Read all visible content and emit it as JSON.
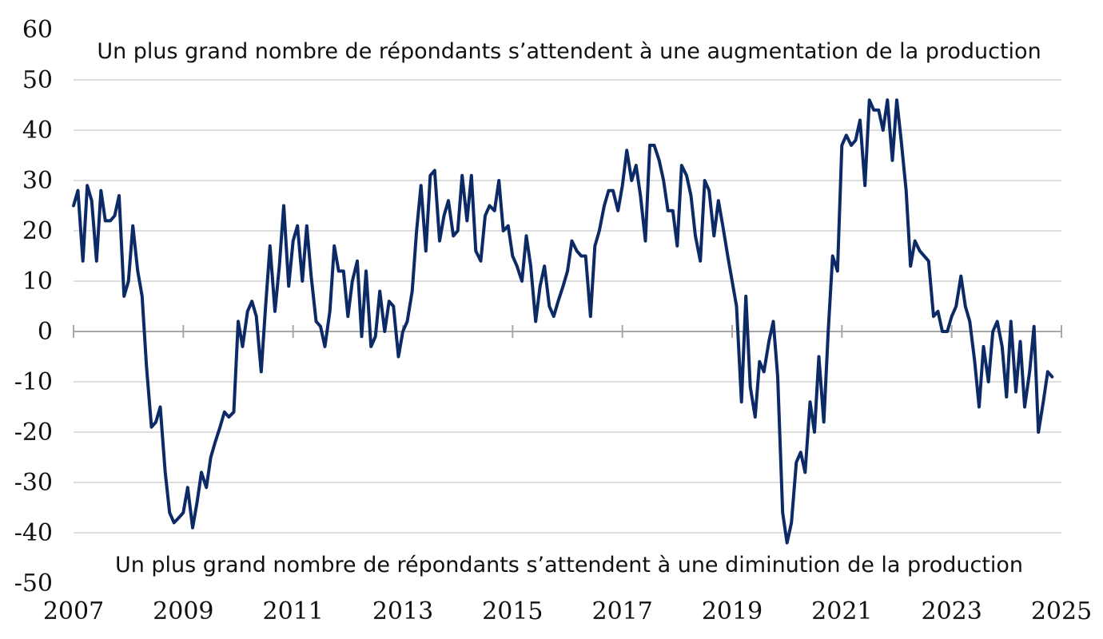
{
  "chart_data": {
    "type": "line",
    "title": "",
    "xlabel": "",
    "ylabel": "",
    "ylim": [
      -50,
      60
    ],
    "xlim": [
      2007,
      2025
    ],
    "yticks": [
      60,
      50,
      40,
      30,
      20,
      10,
      0,
      -10,
      -20,
      -30,
      -40,
      -50
    ],
    "xticks": [
      "2007",
      "2009",
      "2011",
      "2013",
      "2015",
      "2017",
      "2019",
      "2021",
      "2023",
      "2025"
    ],
    "grid": true,
    "line_color": "#0c2a66",
    "annotations": {
      "top": "Un plus grand nombre de répondants s’attendent à une augmentation de la production",
      "bottom": "Un plus grand nombre de répondants s’attendent à une diminution de la production"
    },
    "series": [
      {
        "points": [
          [
            2007.0,
            25
          ],
          [
            2007.08,
            28
          ],
          [
            2007.17,
            14
          ],
          [
            2007.25,
            29
          ],
          [
            2007.33,
            26
          ],
          [
            2007.42,
            14
          ],
          [
            2007.5,
            28
          ],
          [
            2007.58,
            22
          ],
          [
            2007.67,
            22
          ],
          [
            2007.75,
            23
          ],
          [
            2007.83,
            27
          ],
          [
            2007.92,
            7
          ],
          [
            2008.0,
            10
          ],
          [
            2008.08,
            21
          ],
          [
            2008.17,
            12
          ],
          [
            2008.25,
            7
          ],
          [
            2008.33,
            -7
          ],
          [
            2008.42,
            -19
          ],
          [
            2008.5,
            -18
          ],
          [
            2008.58,
            -15
          ],
          [
            2008.67,
            -28
          ],
          [
            2008.75,
            -36
          ],
          [
            2008.83,
            -38
          ],
          [
            2008.92,
            -37
          ],
          [
            2009.0,
            -36
          ],
          [
            2009.08,
            -31
          ],
          [
            2009.17,
            -39
          ],
          [
            2009.25,
            -34
          ],
          [
            2009.33,
            -28
          ],
          [
            2009.42,
            -31
          ],
          [
            2009.5,
            -25
          ],
          [
            2009.58,
            -22
          ],
          [
            2009.67,
            -19
          ],
          [
            2009.75,
            -16
          ],
          [
            2009.83,
            -17
          ],
          [
            2009.92,
            -16
          ],
          [
            2010.0,
            2
          ],
          [
            2010.08,
            -3
          ],
          [
            2010.17,
            4
          ],
          [
            2010.25,
            6
          ],
          [
            2010.33,
            3
          ],
          [
            2010.42,
            -8
          ],
          [
            2010.5,
            5
          ],
          [
            2010.58,
            17
          ],
          [
            2010.67,
            4
          ],
          [
            2010.75,
            13
          ],
          [
            2010.83,
            25
          ],
          [
            2010.92,
            9
          ],
          [
            2011.0,
            18
          ],
          [
            2011.08,
            21
          ],
          [
            2011.17,
            10
          ],
          [
            2011.25,
            21
          ],
          [
            2011.33,
            11
          ],
          [
            2011.42,
            2
          ],
          [
            2011.5,
            1
          ],
          [
            2011.58,
            -3
          ],
          [
            2011.67,
            4
          ],
          [
            2011.75,
            17
          ],
          [
            2011.83,
            12
          ],
          [
            2011.92,
            12
          ],
          [
            2012.0,
            3
          ],
          [
            2012.08,
            10
          ],
          [
            2012.17,
            14
          ],
          [
            2012.25,
            -1
          ],
          [
            2012.33,
            12
          ],
          [
            2012.42,
            -3
          ],
          [
            2012.5,
            -1
          ],
          [
            2012.58,
            8
          ],
          [
            2012.67,
            0
          ],
          [
            2012.75,
            6
          ],
          [
            2012.83,
            5
          ],
          [
            2012.92,
            -5
          ],
          [
            2013.0,
            0
          ],
          [
            2013.08,
            2
          ],
          [
            2013.17,
            8
          ],
          [
            2013.25,
            20
          ],
          [
            2013.33,
            29
          ],
          [
            2013.42,
            16
          ],
          [
            2013.5,
            31
          ],
          [
            2013.58,
            32
          ],
          [
            2013.67,
            18
          ],
          [
            2013.75,
            23
          ],
          [
            2013.83,
            26
          ],
          [
            2013.92,
            19
          ],
          [
            2014.0,
            20
          ],
          [
            2014.08,
            31
          ],
          [
            2014.17,
            22
          ],
          [
            2014.25,
            31
          ],
          [
            2014.33,
            16
          ],
          [
            2014.42,
            14
          ],
          [
            2014.5,
            23
          ],
          [
            2014.58,
            25
          ],
          [
            2014.67,
            24
          ],
          [
            2014.75,
            30
          ],
          [
            2014.83,
            20
          ],
          [
            2014.92,
            21
          ],
          [
            2015.0,
            15
          ],
          [
            2015.08,
            13
          ],
          [
            2015.17,
            10
          ],
          [
            2015.25,
            19
          ],
          [
            2015.33,
            13
          ],
          [
            2015.42,
            2
          ],
          [
            2015.5,
            9
          ],
          [
            2015.58,
            13
          ],
          [
            2015.67,
            5
          ],
          [
            2015.75,
            3
          ],
          [
            2015.83,
            6
          ],
          [
            2015.92,
            9
          ],
          [
            2016.0,
            12
          ],
          [
            2016.08,
            18
          ],
          [
            2016.17,
            16
          ],
          [
            2016.25,
            15
          ],
          [
            2016.33,
            15
          ],
          [
            2016.42,
            3
          ],
          [
            2016.5,
            17
          ],
          [
            2016.58,
            20
          ],
          [
            2016.67,
            25
          ],
          [
            2016.75,
            28
          ],
          [
            2016.83,
            28
          ],
          [
            2016.92,
            24
          ],
          [
            2017.0,
            29
          ],
          [
            2017.08,
            36
          ],
          [
            2017.17,
            30
          ],
          [
            2017.25,
            33
          ],
          [
            2017.33,
            27
          ],
          [
            2017.42,
            18
          ],
          [
            2017.5,
            37
          ],
          [
            2017.58,
            37
          ],
          [
            2017.67,
            34
          ],
          [
            2017.75,
            30
          ],
          [
            2017.83,
            24
          ],
          [
            2017.92,
            24
          ],
          [
            2018.0,
            17
          ],
          [
            2018.08,
            33
          ],
          [
            2018.17,
            31
          ],
          [
            2018.25,
            27
          ],
          [
            2018.33,
            19
          ],
          [
            2018.42,
            14
          ],
          [
            2018.5,
            30
          ],
          [
            2018.58,
            28
          ],
          [
            2018.67,
            19
          ],
          [
            2018.75,
            26
          ],
          [
            2018.83,
            21
          ],
          [
            2018.92,
            15
          ],
          [
            2019.0,
            10
          ],
          [
            2019.08,
            5
          ],
          [
            2019.17,
            -14
          ],
          [
            2019.25,
            7
          ],
          [
            2019.33,
            -11
          ],
          [
            2019.42,
            -17
          ],
          [
            2019.5,
            -6
          ],
          [
            2019.58,
            -8
          ],
          [
            2019.67,
            -2
          ],
          [
            2019.75,
            2
          ],
          [
            2019.83,
            -9
          ],
          [
            2019.92,
            -36
          ],
          [
            2020.0,
            -42
          ],
          [
            2020.08,
            -38
          ],
          [
            2020.17,
            -26
          ],
          [
            2020.25,
            -24
          ],
          [
            2020.33,
            -28
          ],
          [
            2020.42,
            -14
          ],
          [
            2020.5,
            -20
          ],
          [
            2020.58,
            -5
          ],
          [
            2020.67,
            -18
          ],
          [
            2020.75,
            0
          ],
          [
            2020.83,
            15
          ],
          [
            2020.92,
            12
          ],
          [
            2021.0,
            37
          ],
          [
            2021.08,
            39
          ],
          [
            2021.17,
            37
          ],
          [
            2021.25,
            38
          ],
          [
            2021.33,
            42
          ],
          [
            2021.42,
            29
          ],
          [
            2021.5,
            46
          ],
          [
            2021.58,
            44
          ],
          [
            2021.67,
            44
          ],
          [
            2021.75,
            40
          ],
          [
            2021.83,
            46
          ],
          [
            2021.92,
            34
          ],
          [
            2022.0,
            46
          ],
          [
            2022.08,
            38
          ],
          [
            2022.17,
            28
          ],
          [
            2022.25,
            13
          ],
          [
            2022.33,
            18
          ],
          [
            2022.42,
            16
          ],
          [
            2022.5,
            15
          ],
          [
            2022.58,
            14
          ],
          [
            2022.67,
            3
          ],
          [
            2022.75,
            4
          ],
          [
            2022.83,
            0
          ],
          [
            2022.92,
            0
          ],
          [
            2023.0,
            3
          ],
          [
            2023.08,
            5
          ],
          [
            2023.17,
            11
          ],
          [
            2023.25,
            5
          ],
          [
            2023.33,
            2
          ],
          [
            2023.42,
            -6
          ],
          [
            2023.5,
            -15
          ],
          [
            2023.58,
            -3
          ],
          [
            2023.67,
            -10
          ],
          [
            2023.75,
            0
          ],
          [
            2023.83,
            2
          ],
          [
            2023.92,
            -3
          ],
          [
            2024.0,
            -13
          ],
          [
            2024.08,
            2
          ],
          [
            2024.17,
            -12
          ],
          [
            2024.25,
            -2
          ],
          [
            2024.33,
            -15
          ],
          [
            2024.42,
            -8
          ],
          [
            2024.5,
            1
          ],
          [
            2024.58,
            -20
          ],
          [
            2024.67,
            -14
          ],
          [
            2024.75,
            -8
          ],
          [
            2024.83,
            -9
          ]
        ]
      }
    ]
  }
}
